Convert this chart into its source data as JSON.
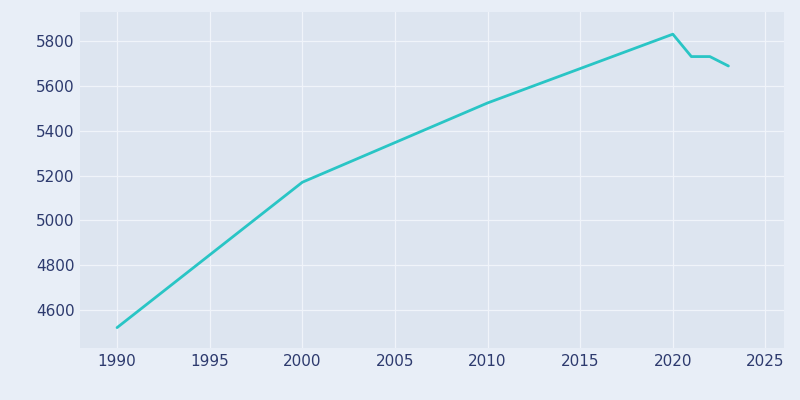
{
  "years": [
    1990,
    2000,
    2010,
    2020,
    2021,
    2022,
    2023
  ],
  "population": [
    4521,
    5170,
    5524,
    5831,
    5731,
    5731,
    5689
  ],
  "line_color": "#29c5c5",
  "background_color": "#e8eef7",
  "axes_facecolor": "#dde5f0",
  "xlim": [
    1988,
    2026
  ],
  "ylim": [
    4430,
    5930
  ],
  "xticks": [
    1990,
    1995,
    2000,
    2005,
    2010,
    2015,
    2020,
    2025
  ],
  "yticks": [
    4600,
    4800,
    5000,
    5200,
    5400,
    5600,
    5800
  ],
  "tick_color": "#2d3a6e",
  "grid_color": "#f0f4fa",
  "line_width": 2.0,
  "tick_fontsize": 11
}
